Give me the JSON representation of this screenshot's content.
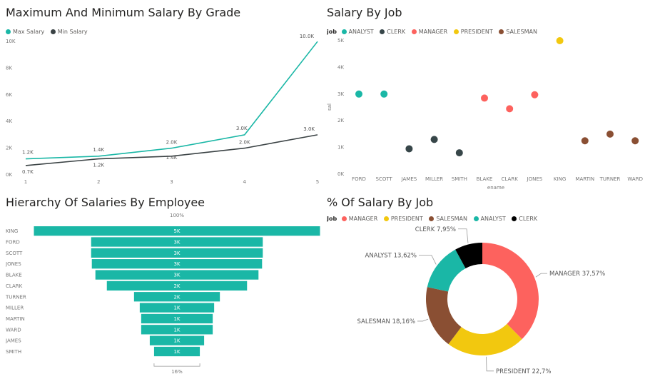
{
  "colors": {
    "max_salary": "#1ab7a6",
    "min_salary": "#3a4244",
    "ANALYST": "#1ab7a6",
    "CLERK": "#374649",
    "MANAGER": "#fd625e",
    "PRESIDENT": "#f2c80f",
    "SALESMAN": "#8a4f33",
    "CLERK_donut": "#000000",
    "funnel": "#1ab7a6"
  },
  "chart_data": [
    {
      "id": "grade",
      "type": "line",
      "title": "Maximum And Minimum Salary By Grade",
      "xlabel": "",
      "ylabel": "",
      "x": [
        1,
        2,
        3,
        4,
        5
      ],
      "series": [
        {
          "name": "Max Salary",
          "values": [
            1200,
            1400,
            2000,
            3000,
            9990
          ],
          "labels": [
            "1.2K",
            "1.4K",
            "2.0K",
            "3.0K",
            "10.0K"
          ]
        },
        {
          "name": "Min Salary",
          "values": [
            700,
            1200,
            1400,
            2000,
            3000
          ],
          "labels": [
            "0.7K",
            "1.2K",
            "1.4K",
            "2.0K",
            "3.0K"
          ]
        }
      ],
      "ylim": [
        0,
        10000
      ],
      "yticks": [
        0,
        2000,
        4000,
        6000,
        8000,
        10000
      ],
      "ytick_labels": [
        "0K",
        "2K",
        "4K",
        "6K",
        "8K",
        "10K"
      ],
      "legend": "top-left",
      "grid": false
    },
    {
      "id": "job",
      "type": "scatter",
      "title": "Salary By Job",
      "legend_title": "job",
      "legend_items": [
        "ANALYST",
        "CLERK",
        "MANAGER",
        "PRESIDENT",
        "SALESMAN"
      ],
      "xlabel": "ename",
      "ylabel": "sal",
      "categories": [
        "FORD",
        "SCOTT",
        "JAMES",
        "MILLER",
        "SMITH",
        "BLAKE",
        "CLARK",
        "JONES",
        "KING",
        "MARTIN",
        "TURNER",
        "WARD"
      ],
      "points": [
        {
          "x": "FORD",
          "y": 3000,
          "job": "ANALYST"
        },
        {
          "x": "SCOTT",
          "y": 3000,
          "job": "ANALYST"
        },
        {
          "x": "JAMES",
          "y": 950,
          "job": "CLERK"
        },
        {
          "x": "MILLER",
          "y": 1300,
          "job": "CLERK"
        },
        {
          "x": "SMITH",
          "y": 800,
          "job": "CLERK"
        },
        {
          "x": "BLAKE",
          "y": 2850,
          "job": "MANAGER"
        },
        {
          "x": "CLARK",
          "y": 2450,
          "job": "MANAGER"
        },
        {
          "x": "JONES",
          "y": 2975,
          "job": "MANAGER"
        },
        {
          "x": "KING",
          "y": 5000,
          "job": "PRESIDENT"
        },
        {
          "x": "MARTIN",
          "y": 1250,
          "job": "SALESMAN"
        },
        {
          "x": "TURNER",
          "y": 1500,
          "job": "SALESMAN"
        },
        {
          "x": "WARD",
          "y": 1250,
          "job": "SALESMAN"
        }
      ],
      "ylim": [
        0,
        5000
      ],
      "yticks": [
        0,
        1000,
        2000,
        3000,
        4000,
        5000
      ],
      "ytick_labels": [
        "0K",
        "1K",
        "2K",
        "3K",
        "4K",
        "5K"
      ],
      "legend": "top-left",
      "grid": false
    },
    {
      "id": "funnel",
      "type": "bar",
      "title": "Hierarchy Of Salaries By Employee",
      "categories": [
        "KING",
        "FORD",
        "SCOTT",
        "JONES",
        "BLAKE",
        "CLARK",
        "TURNER",
        "MILLER",
        "MARTIN",
        "WARD",
        "JAMES",
        "SMITH"
      ],
      "values": [
        5000,
        3000,
        3000,
        2975,
        2850,
        2450,
        1500,
        1300,
        1250,
        1250,
        950,
        800
      ],
      "labels": [
        "5K",
        "3K",
        "3K",
        "3K",
        "3K",
        "2K",
        "2K",
        "1K",
        "1K",
        "1K",
        "1K",
        "1K"
      ],
      "top_label": "100%",
      "bottom_label": "16%"
    },
    {
      "id": "donut",
      "type": "pie",
      "title": "% Of Salary By Job",
      "legend_title": "Job",
      "legend": "top-left",
      "slices": [
        {
          "name": "MANAGER",
          "value": 37.57,
          "label": "MANAGER 37,57%"
        },
        {
          "name": "PRESIDENT",
          "value": 22.7,
          "label": "PRESIDENT 22,7%"
        },
        {
          "name": "SALESMAN",
          "value": 18.16,
          "label": "SALESMAN 18,16%"
        },
        {
          "name": "ANALYST",
          "value": 13.62,
          "label": "ANALYST 13,62%"
        },
        {
          "name": "CLERK",
          "value": 7.95,
          "label": "CLERK 7,95%"
        }
      ]
    }
  ]
}
